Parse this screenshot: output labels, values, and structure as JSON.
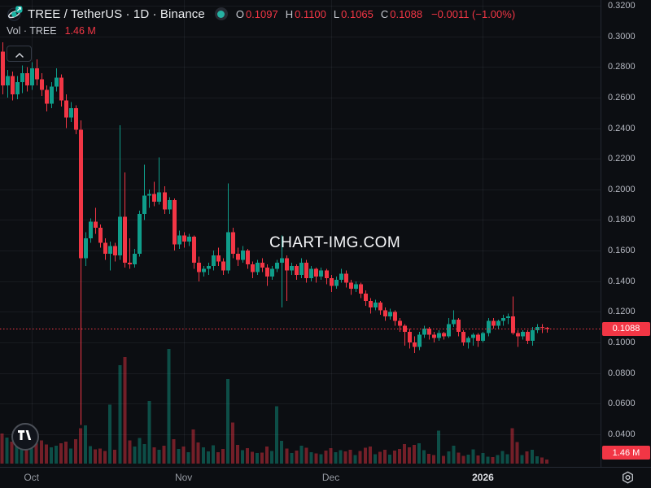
{
  "header": {
    "title": "TREE / TetherUS · 1D · Binance",
    "ohlc": {
      "o_label": "O",
      "o": "0.1097",
      "h_label": "H",
      "h": "0.1100",
      "l_label": "L",
      "l": "0.1065",
      "c_label": "C",
      "c": "0.1088",
      "change": "−0.0011 (−1.00%)"
    },
    "vol_label": "Vol · TREE",
    "vol_value": "1.46 M"
  },
  "watermark": "CHART-IMG.COM",
  "colors": {
    "background": "#0c0e12",
    "up": "#0f9d8a",
    "down": "#f23645",
    "vol_up": "rgba(15,157,138,0.45)",
    "vol_down": "rgba(242,54,69,0.45)",
    "grid": "rgba(160,165,175,0.09)",
    "last_price_line": "#f23645",
    "badge_bg": "#f23645",
    "axis_text": "#b2b5be",
    "accent_teal": "#26b1a2"
  },
  "price_axis": {
    "last_price_label": "0.1088",
    "volume_badge_label": "1.46 M",
    "ticks": [
      {
        "label": "0.3200",
        "value": 0.32
      },
      {
        "label": "0.3000",
        "value": 0.3
      },
      {
        "label": "0.2800",
        "value": 0.28
      },
      {
        "label": "0.2600",
        "value": 0.26
      },
      {
        "label": "0.2400",
        "value": 0.24
      },
      {
        "label": "0.2200",
        "value": 0.22
      },
      {
        "label": "0.2000",
        "value": 0.2
      },
      {
        "label": "0.1800",
        "value": 0.18
      },
      {
        "label": "0.1600",
        "value": 0.16
      },
      {
        "label": "0.1400",
        "value": 0.14
      },
      {
        "label": "0.1200",
        "value": 0.12
      },
      {
        "label": "0.1000",
        "value": 0.1
      },
      {
        "label": "0.0800",
        "value": 0.08
      },
      {
        "label": "0.0600",
        "value": 0.06
      },
      {
        "label": "0.0400",
        "value": 0.04
      }
    ]
  },
  "time_axis": {
    "ticks": [
      {
        "label": "Oct",
        "candle_index": 8,
        "year": false
      },
      {
        "label": "Nov",
        "candle_index": 39,
        "year": false
      },
      {
        "label": "Dec",
        "candle_index": 69,
        "year": false
      },
      {
        "label": "2026",
        "candle_index": 100,
        "year": true
      }
    ]
  },
  "chart_data": {
    "type": "candlestick_with_volume",
    "symbol": "TREE / TetherUS",
    "interval": "1D",
    "exchange": "Binance",
    "last_price": 0.1088,
    "last_volume_millions": 1.46,
    "price_axis_visible_range": [
      0.031,
      0.324
    ],
    "grid": true,
    "columns": [
      "date",
      "open",
      "high",
      "low",
      "close",
      "volume_millions"
    ],
    "rows": [
      [
        "Sep 24",
        0.282,
        0.294,
        0.26,
        0.266,
        12.5
      ],
      [
        "Sep 25",
        0.29,
        0.296,
        0.262,
        0.268,
        11.0
      ],
      [
        "Sep 26",
        0.268,
        0.278,
        0.26,
        0.274,
        9.5
      ],
      [
        "Sep 27",
        0.274,
        0.277,
        0.258,
        0.262,
        8.0
      ],
      [
        "Sep 28",
        0.262,
        0.274,
        0.259,
        0.27,
        8.8
      ],
      [
        "Sep 29",
        0.27,
        0.281,
        0.263,
        0.276,
        10.0
      ],
      [
        "Sep 30",
        0.276,
        0.28,
        0.264,
        0.268,
        9.0
      ],
      [
        "Oct 1",
        0.268,
        0.283,
        0.265,
        0.279,
        8.2
      ],
      [
        "Oct 2",
        0.279,
        0.285,
        0.268,
        0.272,
        7.5
      ],
      [
        "Oct 3",
        0.272,
        0.276,
        0.261,
        0.265,
        8.5
      ],
      [
        "Oct 4",
        0.265,
        0.268,
        0.251,
        0.256,
        7.0
      ],
      [
        "Oct 5",
        0.256,
        0.27,
        0.253,
        0.267,
        6.0
      ],
      [
        "Oct 6",
        0.267,
        0.279,
        0.264,
        0.273,
        6.5
      ],
      [
        "Oct 7",
        0.273,
        0.275,
        0.254,
        0.258,
        7.5
      ],
      [
        "Oct 8",
        0.258,
        0.262,
        0.24,
        0.247,
        8.0
      ],
      [
        "Oct 9",
        0.247,
        0.257,
        0.244,
        0.253,
        5.5
      ],
      [
        "Oct 10",
        0.253,
        0.255,
        0.236,
        0.239,
        9.0
      ],
      [
        "Oct 11",
        0.239,
        0.245,
        0.046,
        0.155,
        13.0
      ],
      [
        "Oct 12",
        0.155,
        0.172,
        0.15,
        0.168,
        14.0
      ],
      [
        "Oct 13",
        0.168,
        0.181,
        0.165,
        0.179,
        6.4
      ],
      [
        "Oct 14",
        0.179,
        0.188,
        0.171,
        0.175,
        5.2
      ],
      [
        "Oct 15",
        0.175,
        0.177,
        0.162,
        0.165,
        5.5
      ],
      [
        "Oct 16",
        0.165,
        0.168,
        0.154,
        0.158,
        4.6
      ],
      [
        "Oct 17",
        0.158,
        0.166,
        0.147,
        0.163,
        21.6
      ],
      [
        "Oct 18",
        0.163,
        0.165,
        0.153,
        0.157,
        5.0
      ],
      [
        "Oct 19",
        0.157,
        0.242,
        0.154,
        0.182,
        36.0
      ],
      [
        "Oct 20",
        0.182,
        0.211,
        0.149,
        0.152,
        39.0
      ],
      [
        "Oct 21",
        0.152,
        0.168,
        0.148,
        0.151,
        8.5
      ],
      [
        "Oct 22",
        0.151,
        0.161,
        0.149,
        0.158,
        6.2
      ],
      [
        "Oct 23",
        0.158,
        0.186,
        0.156,
        0.184,
        9.4
      ],
      [
        "Oct 24",
        0.184,
        0.216,
        0.18,
        0.196,
        7.1
      ],
      [
        "Oct 25",
        0.196,
        0.2,
        0.188,
        0.197,
        23.0
      ],
      [
        "Oct 26",
        0.197,
        0.205,
        0.189,
        0.192,
        6.0
      ],
      [
        "Oct 27",
        0.192,
        0.221,
        0.19,
        0.198,
        5.1
      ],
      [
        "Oct 28",
        0.198,
        0.202,
        0.184,
        0.187,
        6.6
      ],
      [
        "Oct 29",
        0.187,
        0.195,
        0.184,
        0.193,
        42.0
      ],
      [
        "Oct 30",
        0.193,
        0.194,
        0.16,
        0.164,
        8.9
      ],
      [
        "Oct 31",
        0.164,
        0.173,
        0.161,
        0.17,
        5.4
      ],
      [
        "Nov 1",
        0.17,
        0.172,
        0.162,
        0.166,
        6.3
      ],
      [
        "Nov 2",
        0.166,
        0.171,
        0.163,
        0.169,
        4.2
      ],
      [
        "Nov 3",
        0.169,
        0.17,
        0.148,
        0.152,
        12.5
      ],
      [
        "Nov 4",
        0.152,
        0.156,
        0.14,
        0.146,
        7.8
      ],
      [
        "Nov 5",
        0.146,
        0.15,
        0.143,
        0.148,
        5.9
      ],
      [
        "Nov 6",
        0.148,
        0.152,
        0.144,
        0.15,
        4.4
      ],
      [
        "Nov 7",
        0.15,
        0.16,
        0.147,
        0.157,
        6.7
      ],
      [
        "Nov 8",
        0.157,
        0.162,
        0.15,
        0.153,
        4.1
      ],
      [
        "Nov 9",
        0.153,
        0.155,
        0.144,
        0.147,
        5.3
      ],
      [
        "Nov 10",
        0.147,
        0.204,
        0.145,
        0.172,
        31.0
      ],
      [
        "Nov 11",
        0.172,
        0.175,
        0.155,
        0.158,
        15.0
      ],
      [
        "Nov 12",
        0.158,
        0.162,
        0.15,
        0.154,
        6.8
      ],
      [
        "Nov 13",
        0.154,
        0.163,
        0.152,
        0.16,
        4.9
      ],
      [
        "Nov 14",
        0.16,
        0.161,
        0.148,
        0.151,
        5.6
      ],
      [
        "Nov 15",
        0.151,
        0.153,
        0.142,
        0.146,
        4.3
      ],
      [
        "Nov 16",
        0.146,
        0.154,
        0.144,
        0.152,
        3.8
      ],
      [
        "Nov 17",
        0.152,
        0.155,
        0.146,
        0.149,
        4.0
      ],
      [
        "Nov 18",
        0.149,
        0.151,
        0.137,
        0.143,
        6.2
      ],
      [
        "Nov 19",
        0.143,
        0.15,
        0.141,
        0.148,
        4.6
      ],
      [
        "Nov 20",
        0.148,
        0.154,
        0.146,
        0.152,
        21.0
      ],
      [
        "Nov 21",
        0.152,
        0.17,
        0.123,
        0.155,
        8.4
      ],
      [
        "Nov 22",
        0.155,
        0.157,
        0.127,
        0.147,
        5.5
      ],
      [
        "Nov 23",
        0.147,
        0.152,
        0.144,
        0.15,
        3.9
      ],
      [
        "Nov 24",
        0.15,
        0.151,
        0.141,
        0.144,
        4.7
      ],
      [
        "Nov 25",
        0.144,
        0.155,
        0.142,
        0.152,
        6.5
      ],
      [
        "Nov 26",
        0.152,
        0.154,
        0.139,
        0.142,
        5.8
      ],
      [
        "Nov 27",
        0.142,
        0.15,
        0.14,
        0.148,
        4.2
      ],
      [
        "Nov 28",
        0.148,
        0.149,
        0.139,
        0.143,
        3.7
      ],
      [
        "Nov 29",
        0.143,
        0.149,
        0.141,
        0.147,
        3.4
      ],
      [
        "Nov 30",
        0.147,
        0.148,
        0.138,
        0.142,
        4.8
      ],
      [
        "Dec 1",
        0.142,
        0.144,
        0.133,
        0.137,
        5.6
      ],
      [
        "Dec 2",
        0.137,
        0.143,
        0.135,
        0.141,
        4.1
      ],
      [
        "Dec 3",
        0.141,
        0.148,
        0.139,
        0.145,
        4.9
      ],
      [
        "Dec 4",
        0.145,
        0.147,
        0.136,
        0.139,
        4.4
      ],
      [
        "Dec 5",
        0.139,
        0.141,
        0.131,
        0.135,
        5.0
      ],
      [
        "Dec 6",
        0.135,
        0.14,
        0.133,
        0.138,
        3.2
      ],
      [
        "Dec 7",
        0.138,
        0.139,
        0.129,
        0.132,
        4.6
      ],
      [
        "Dec 8",
        0.132,
        0.134,
        0.124,
        0.127,
        5.8
      ],
      [
        "Dec 9",
        0.127,
        0.129,
        0.119,
        0.123,
        6.2
      ],
      [
        "Dec 10",
        0.123,
        0.128,
        0.121,
        0.126,
        3.5
      ],
      [
        "Dec 11",
        0.126,
        0.127,
        0.118,
        0.121,
        4.3
      ],
      [
        "Dec 12",
        0.121,
        0.123,
        0.114,
        0.117,
        5.1
      ],
      [
        "Dec 13",
        0.117,
        0.122,
        0.115,
        0.12,
        3.3
      ],
      [
        "Dec 14",
        0.12,
        0.121,
        0.111,
        0.114,
        4.7
      ],
      [
        "Dec 15",
        0.114,
        0.116,
        0.107,
        0.111,
        5.4
      ],
      [
        "Dec 16",
        0.111,
        0.112,
        0.098,
        0.107,
        7.2
      ],
      [
        "Dec 17",
        0.107,
        0.109,
        0.096,
        0.1,
        6.0
      ],
      [
        "Dec 18",
        0.1,
        0.104,
        0.093,
        0.097,
        6.8
      ],
      [
        "Dec 19",
        0.097,
        0.107,
        0.095,
        0.105,
        7.4
      ],
      [
        "Dec 20",
        0.105,
        0.111,
        0.103,
        0.109,
        4.9
      ],
      [
        "Dec 21",
        0.109,
        0.11,
        0.102,
        0.105,
        3.6
      ],
      [
        "Dec 22",
        0.105,
        0.107,
        0.1,
        0.103,
        3.1
      ],
      [
        "Dec 23",
        0.103,
        0.108,
        0.101,
        0.106,
        12.0
      ],
      [
        "Dec 24",
        0.106,
        0.107,
        0.102,
        0.104,
        2.8
      ],
      [
        "Dec 25",
        0.104,
        0.116,
        0.103,
        0.112,
        4.4
      ],
      [
        "Dec 26",
        0.112,
        0.121,
        0.11,
        0.115,
        6.6
      ],
      [
        "Dec 27",
        0.115,
        0.116,
        0.104,
        0.107,
        4.0
      ],
      [
        "Dec 28",
        0.107,
        0.108,
        0.098,
        0.1,
        2.9
      ],
      [
        "Dec 29",
        0.1,
        0.104,
        0.096,
        0.103,
        3.3
      ],
      [
        "Dec 30",
        0.103,
        0.106,
        0.098,
        0.105,
        5.2
      ],
      [
        "Dec 31",
        0.105,
        0.106,
        0.097,
        0.101,
        3.0
      ],
      [
        "Jan 1",
        0.101,
        0.107,
        0.1,
        0.106,
        3.8
      ],
      [
        "Jan 2",
        0.106,
        0.116,
        0.104,
        0.114,
        2.6
      ],
      [
        "Jan 3",
        0.114,
        0.116,
        0.109,
        0.111,
        2.4
      ],
      [
        "Jan 4",
        0.111,
        0.115,
        0.109,
        0.114,
        3.1
      ],
      [
        "Jan 5",
        0.114,
        0.118,
        0.111,
        0.116,
        4.6
      ],
      [
        "Jan 6",
        0.116,
        0.119,
        0.112,
        0.117,
        3.4
      ],
      [
        "Jan 7",
        0.117,
        0.13,
        0.105,
        0.106,
        13.0
      ],
      [
        "Jan 8",
        0.106,
        0.108,
        0.097,
        0.104,
        7.9
      ],
      [
        "Jan 9",
        0.104,
        0.108,
        0.102,
        0.107,
        3.2
      ],
      [
        "Jan 10",
        0.107,
        0.108,
        0.099,
        0.101,
        4.5
      ],
      [
        "Jan 11",
        0.101,
        0.11,
        0.098,
        0.108,
        5.0
      ],
      [
        "Jan 12",
        0.108,
        0.112,
        0.106,
        0.11,
        2.7
      ],
      [
        "Jan 13",
        0.11,
        0.112,
        0.106,
        0.1099,
        2.2
      ],
      [
        "Jan 14",
        0.1097,
        0.11,
        0.1065,
        0.1088,
        1.46
      ]
    ]
  }
}
